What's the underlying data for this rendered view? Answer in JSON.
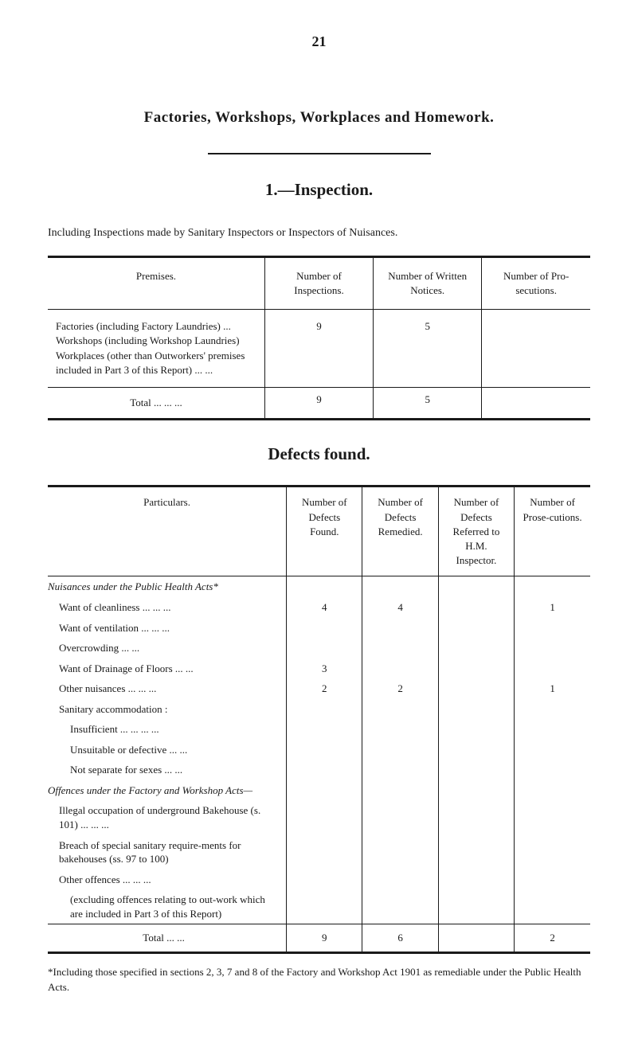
{
  "page_number": "21",
  "main_title": "Factories, Workshops, Workplaces and Homework.",
  "section_number_title": "1.—Inspection.",
  "intro_line": "Including Inspections made by Sanitary Inspectors or Inspectors of Nuisances.",
  "table1": {
    "headers": {
      "premises": "Premises.",
      "inspections": "Number of Inspections.",
      "written": "Number of Written Notices.",
      "prosecutions": "Number of Pro-secutions."
    },
    "row_label": "Factories (including Factory Laundries) ... Workshops (including Workshop Laundries) Workplaces (other than Outworkers' premises included in Part 3 of this Report) ... ...",
    "row_vals": [
      "9",
      "5",
      ""
    ],
    "total_label": "Total          ...      ...      ...",
    "total_vals": [
      "9",
      "5",
      ""
    ]
  },
  "defects_heading": "Defects found.",
  "table2": {
    "headers": {
      "particulars": "Particulars.",
      "found": "Number of Defects Found.",
      "remedied": "Number of Defects Remedied.",
      "referred": "Number of Defects Referred to H.M. Inspector.",
      "prosecutions": "Number of Prose-cutions."
    },
    "rows": [
      {
        "label": "Nuisances under the Public Health Acts*",
        "italic": true,
        "indent": 0,
        "vals": [
          "",
          "",
          "",
          ""
        ]
      },
      {
        "label": "Want of cleanliness ...      ...      ...",
        "indent": 1,
        "vals": [
          "4",
          "4",
          "",
          "1"
        ]
      },
      {
        "label": "Want of ventilation ...      ...      ...",
        "indent": 1,
        "vals": [
          "",
          "",
          "",
          ""
        ]
      },
      {
        "label": "Overcrowding               ...      ...",
        "indent": 1,
        "vals": [
          "",
          "",
          "",
          ""
        ]
      },
      {
        "label": "Want of Drainage of Floors ...      ...",
        "indent": 1,
        "vals": [
          "3",
          "",
          "",
          ""
        ]
      },
      {
        "label": "Other nuisances          ...      ...      ...",
        "indent": 1,
        "vals": [
          "2",
          "2",
          "",
          "1"
        ]
      },
      {
        "label": "Sanitary accommodation :",
        "indent": 1,
        "vals": [
          "",
          "",
          "",
          ""
        ]
      },
      {
        "label": "Insufficient ...      ...      ...      ...",
        "indent": 2,
        "vals": [
          "",
          "",
          "",
          ""
        ]
      },
      {
        "label": "Unsuitable or defective   ...      ...",
        "indent": 2,
        "vals": [
          "",
          "",
          "",
          ""
        ]
      },
      {
        "label": "Not separate for sexes    ...      ...",
        "indent": 2,
        "vals": [
          "",
          "",
          "",
          ""
        ]
      },
      {
        "label": "Offences under the Factory and Workshop Acts—",
        "italic": true,
        "indent": 0,
        "vals": [
          "",
          "",
          "",
          ""
        ]
      },
      {
        "label": "Illegal occupation of underground Bakehouse (s. 101) ...      ...      ...",
        "indent": 1,
        "vals": [
          "",
          "",
          "",
          ""
        ]
      },
      {
        "label": "Breach of special sanitary require-ments for bakehouses (ss. 97 to 100)",
        "indent": 1,
        "vals": [
          "",
          "",
          "",
          ""
        ]
      },
      {
        "label": "Other offences          ...      ...      ...",
        "indent": 1,
        "vals": [
          "",
          "",
          "",
          ""
        ]
      },
      {
        "label": "(excluding offences relating to out-work which are included in Part 3 of this Report)",
        "indent": 2,
        "vals": [
          "",
          "",
          "",
          ""
        ]
      }
    ],
    "total_label": "Total     ...      ...",
    "total_vals": [
      "9",
      "6",
      "",
      "2"
    ]
  },
  "footnote": "*Including those specified in sections 2, 3, 7 and 8 of the Factory and Workshop Act 1901 as remediable under the Public Health Acts."
}
